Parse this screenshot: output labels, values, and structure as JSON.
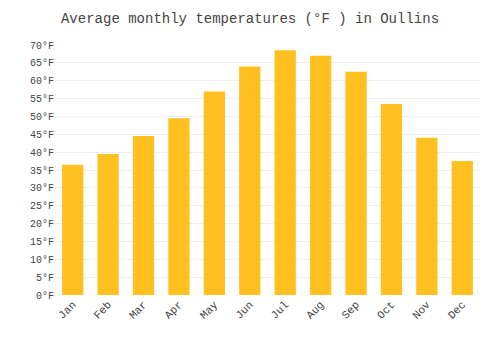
{
  "chart_data": {
    "type": "bar",
    "title": "Average monthly temperatures (°F ) in Oullins",
    "categories": [
      "Jan",
      "Feb",
      "Mar",
      "Apr",
      "May",
      "Jun",
      "Jul",
      "Aug",
      "Sep",
      "Oct",
      "Nov",
      "Dec"
    ],
    "values": [
      36.5,
      39.5,
      44.5,
      49.5,
      57.0,
      64.0,
      68.5,
      67.0,
      62.5,
      53.5,
      44.0,
      37.5
    ],
    "color": "#FFC020",
    "ylim": [
      0,
      70
    ],
    "yticks": [
      {
        "value": 0,
        "label": "0°F"
      },
      {
        "value": 5,
        "label": "5°F"
      },
      {
        "value": 10,
        "label": "10°F"
      },
      {
        "value": 15,
        "label": "15°F"
      },
      {
        "value": 20,
        "label": "20°F"
      },
      {
        "value": 25,
        "label": "25°F"
      },
      {
        "value": 30,
        "label": "30°F"
      },
      {
        "value": 35,
        "label": "35°F"
      },
      {
        "value": 40,
        "label": "40°F"
      },
      {
        "value": 45,
        "label": "45°F"
      },
      {
        "value": 50,
        "label": "50°F"
      },
      {
        "value": 55,
        "label": "55°F"
      },
      {
        "value": 60,
        "label": "60°F"
      },
      {
        "value": 65,
        "label": "65°F"
      },
      {
        "value": 70,
        "label": "70°F"
      }
    ],
    "grid": true
  }
}
